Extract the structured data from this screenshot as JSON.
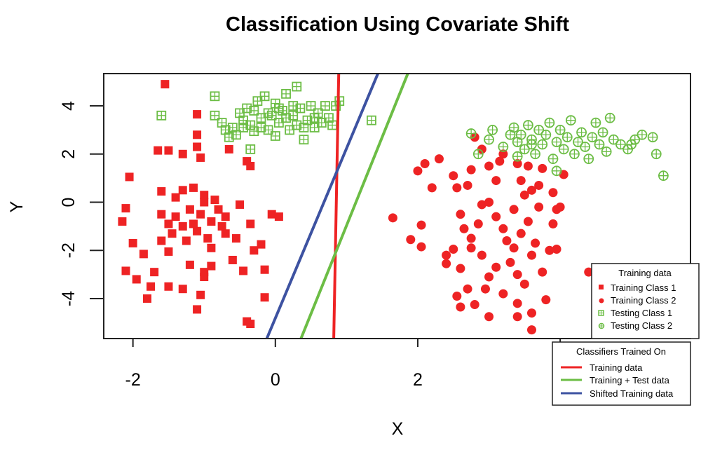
{
  "chart_data": {
    "type": "scatter",
    "title": "Classification Using Covariate Shift",
    "xlabel": "X",
    "ylabel": "Y",
    "xlim": [
      -2.41,
      5.83
    ],
    "ylim": [
      -5.66,
      5.34
    ],
    "xticks": [
      -2,
      0,
      2,
      4
    ],
    "xtick_labels": [
      "-2",
      "0",
      "2",
      "4"
    ],
    "yticks": [
      -4,
      -2,
      0,
      2,
      4
    ],
    "ytick_labels": [
      "-4",
      "-2",
      "0",
      "2",
      "4"
    ],
    "grid": false,
    "colors": {
      "red": "#ee2324",
      "green": "#6cbd45",
      "blue": "#3d52a1"
    },
    "series": [
      {
        "name": "Training Class 1",
        "marker": "square",
        "color": "#ee2324",
        "points": [
          [
            -1.55,
            4.9
          ],
          [
            -2.05,
            1.05
          ],
          [
            -1.65,
            2.15
          ],
          [
            -1.5,
            2.15
          ],
          [
            -1.3,
            2.0
          ],
          [
            -1.1,
            2.3
          ],
          [
            -1.05,
            1.85
          ],
          [
            -1.1,
            2.8
          ],
          [
            -1.1,
            3.65
          ],
          [
            -0.65,
            2.2
          ],
          [
            -0.4,
            1.7
          ],
          [
            -0.35,
            1.5
          ],
          [
            -1.6,
            0.45
          ],
          [
            -2.1,
            -0.25
          ],
          [
            -2.15,
            -0.8
          ],
          [
            -2.0,
            -1.7
          ],
          [
            -1.85,
            -2.15
          ],
          [
            -1.6,
            -1.6
          ],
          [
            -1.5,
            -2.05
          ],
          [
            -1.7,
            -2.9
          ],
          [
            -2.1,
            -2.85
          ],
          [
            -1.95,
            -3.2
          ],
          [
            -1.75,
            -3.5
          ],
          [
            -1.8,
            -4.0
          ],
          [
            -1.5,
            -3.5
          ],
          [
            -1.3,
            -3.6
          ],
          [
            -1.1,
            -4.45
          ],
          [
            -1.05,
            -3.85
          ],
          [
            -1.0,
            -3.1
          ],
          [
            -0.9,
            -2.65
          ],
          [
            -0.6,
            -2.4
          ],
          [
            -0.45,
            -2.85
          ],
          [
            -0.4,
            -4.95
          ],
          [
            -0.35,
            -5.05
          ],
          [
            -0.2,
            -1.75
          ],
          [
            -0.15,
            -2.8
          ],
          [
            -0.05,
            -0.5
          ],
          [
            0.05,
            -0.6
          ],
          [
            -0.15,
            -3.95
          ],
          [
            -0.3,
            -2.0
          ],
          [
            -1.4,
            0.2
          ],
          [
            -1.3,
            0.5
          ],
          [
            -1.15,
            0.6
          ],
          [
            -1.0,
            0.3
          ],
          [
            -0.85,
            0.1
          ],
          [
            -1.2,
            -0.3
          ],
          [
            -1.05,
            -0.5
          ],
          [
            -0.9,
            -0.8
          ],
          [
            -0.75,
            -1.0
          ],
          [
            -1.4,
            -0.6
          ],
          [
            -1.6,
            -0.5
          ],
          [
            -1.3,
            -1.0
          ],
          [
            -1.1,
            -1.2
          ],
          [
            -0.95,
            -1.5
          ],
          [
            -1.25,
            -1.6
          ],
          [
            -1.45,
            -1.3
          ],
          [
            -0.7,
            -1.3
          ],
          [
            -0.5,
            -0.1
          ],
          [
            -0.35,
            -0.9
          ],
          [
            -1.2,
            -2.6
          ],
          [
            -0.55,
            -1.5
          ],
          [
            -1.5,
            -0.9
          ],
          [
            -0.9,
            -1.9
          ],
          [
            -1.0,
            -2.9
          ],
          [
            -0.8,
            -0.3
          ],
          [
            -1.15,
            -0.9
          ],
          [
            -1.0,
            0.0
          ],
          [
            -0.7,
            -0.6
          ]
        ]
      },
      {
        "name": "Training Class 2",
        "marker": "circle",
        "color": "#ee2324",
        "points": [
          [
            1.65,
            -0.65
          ],
          [
            2.0,
            1.3
          ],
          [
            2.1,
            1.6
          ],
          [
            2.2,
            0.6
          ],
          [
            2.3,
            1.8
          ],
          [
            2.5,
            1.1
          ],
          [
            2.55,
            0.6
          ],
          [
            2.7,
            0.7
          ],
          [
            2.75,
            1.35
          ],
          [
            2.8,
            2.7
          ],
          [
            2.9,
            2.2
          ],
          [
            3.0,
            1.5
          ],
          [
            3.1,
            0.9
          ],
          [
            3.15,
            1.7
          ],
          [
            3.2,
            2.0
          ],
          [
            3.4,
            1.6
          ],
          [
            3.45,
            0.9
          ],
          [
            3.5,
            0.3
          ],
          [
            3.6,
            0.5
          ],
          [
            3.55,
            1.5
          ],
          [
            3.7,
            0.7
          ],
          [
            3.75,
            1.4
          ],
          [
            3.9,
            0.4
          ],
          [
            4.05,
            1.15
          ],
          [
            3.95,
            -0.3
          ],
          [
            3.9,
            -0.9
          ],
          [
            3.95,
            -1.95
          ],
          [
            3.85,
            -2.0
          ],
          [
            3.75,
            -2.9
          ],
          [
            4.4,
            -2.9
          ],
          [
            3.8,
            -4.05
          ],
          [
            3.6,
            -4.6
          ],
          [
            3.6,
            -5.3
          ],
          [
            3.4,
            -4.75
          ],
          [
            3.4,
            -4.2
          ],
          [
            3.2,
            -3.8
          ],
          [
            3.0,
            -4.75
          ],
          [
            2.8,
            -4.25
          ],
          [
            2.6,
            -4.35
          ],
          [
            2.55,
            -3.9
          ],
          [
            2.7,
            -3.6
          ],
          [
            2.6,
            -2.75
          ],
          [
            2.4,
            -2.2
          ],
          [
            2.4,
            -2.55
          ],
          [
            2.5,
            -1.95
          ],
          [
            1.9,
            -1.55
          ],
          [
            2.05,
            -1.85
          ],
          [
            2.05,
            -0.95
          ],
          [
            2.65,
            -1.1
          ],
          [
            2.75,
            -1.5
          ],
          [
            2.85,
            -0.9
          ],
          [
            2.9,
            -0.1
          ],
          [
            3.0,
            0.0
          ],
          [
            3.1,
            -0.6
          ],
          [
            3.2,
            -1.1
          ],
          [
            3.25,
            -1.6
          ],
          [
            3.35,
            -1.9
          ],
          [
            3.45,
            -1.3
          ],
          [
            3.55,
            -0.8
          ],
          [
            3.65,
            -1.7
          ],
          [
            3.6,
            -2.2
          ],
          [
            3.3,
            -2.5
          ],
          [
            3.1,
            -2.7
          ],
          [
            3.0,
            -3.1
          ],
          [
            2.9,
            -2.2
          ],
          [
            2.75,
            -1.9
          ],
          [
            3.4,
            -3.0
          ],
          [
            3.5,
            -3.4
          ],
          [
            2.95,
            -3.6
          ],
          [
            3.7,
            -0.2
          ],
          [
            4.0,
            -0.2
          ],
          [
            2.6,
            -0.5
          ],
          [
            3.35,
            -0.3
          ]
        ]
      },
      {
        "name": "Testing Class 1",
        "marker": "square-plus",
        "color": "#6cbd45",
        "points": [
          [
            -1.6,
            3.6
          ],
          [
            -0.85,
            4.4
          ],
          [
            -0.35,
            2.2
          ],
          [
            0.9,
            4.2
          ],
          [
            1.35,
            3.4
          ],
          [
            -0.85,
            3.6
          ],
          [
            -0.75,
            3.3
          ],
          [
            -0.7,
            3.0
          ],
          [
            -0.6,
            3.1
          ],
          [
            -0.5,
            3.7
          ],
          [
            -0.45,
            3.4
          ],
          [
            -0.4,
            3.9
          ],
          [
            -0.35,
            3.2
          ],
          [
            -0.3,
            3.8
          ],
          [
            -0.25,
            4.2
          ],
          [
            -0.2,
            3.5
          ],
          [
            -0.15,
            4.4
          ],
          [
            -0.1,
            3.0
          ],
          [
            -0.05,
            3.6
          ],
          [
            0.0,
            4.1
          ],
          [
            0.05,
            3.3
          ],
          [
            0.1,
            3.8
          ],
          [
            0.15,
            4.5
          ],
          [
            0.2,
            3.0
          ],
          [
            0.25,
            3.6
          ],
          [
            0.3,
            3.2
          ],
          [
            0.35,
            3.9
          ],
          [
            0.4,
            2.6
          ],
          [
            0.45,
            3.4
          ],
          [
            0.5,
            4.0
          ],
          [
            0.55,
            3.1
          ],
          [
            0.6,
            3.7
          ],
          [
            0.65,
            3.3
          ],
          [
            0.7,
            4.0
          ],
          [
            0.75,
            3.5
          ],
          [
            0.8,
            3.2
          ],
          [
            0.85,
            4.0
          ],
          [
            0.3,
            4.8
          ],
          [
            -0.55,
            2.8
          ],
          [
            -0.65,
            2.7
          ],
          [
            -0.2,
            3.1
          ],
          [
            0.0,
            2.75
          ],
          [
            0.05,
            3.9
          ],
          [
            -0.1,
            3.7
          ],
          [
            0.15,
            3.5
          ],
          [
            0.25,
            4.0
          ],
          [
            -0.3,
            2.95
          ],
          [
            -0.45,
            3.1
          ],
          [
            0.4,
            3.1
          ],
          [
            0.55,
            3.5
          ]
        ]
      },
      {
        "name": "Testing Class 2",
        "marker": "circle-plus",
        "color": "#6cbd45",
        "points": [
          [
            2.75,
            2.85
          ],
          [
            2.85,
            2.0
          ],
          [
            3.0,
            2.6
          ],
          [
            3.05,
            3.0
          ],
          [
            3.2,
            2.3
          ],
          [
            3.35,
            3.1
          ],
          [
            3.4,
            2.5
          ],
          [
            3.45,
            2.8
          ],
          [
            3.5,
            2.2
          ],
          [
            3.55,
            3.2
          ],
          [
            3.6,
            2.6
          ],
          [
            3.65,
            2.0
          ],
          [
            3.7,
            3.0
          ],
          [
            3.75,
            2.4
          ],
          [
            3.8,
            2.8
          ],
          [
            3.85,
            3.3
          ],
          [
            3.9,
            1.8
          ],
          [
            3.95,
            1.3
          ],
          [
            3.95,
            2.5
          ],
          [
            4.0,
            3.0
          ],
          [
            4.05,
            2.2
          ],
          [
            4.1,
            2.7
          ],
          [
            4.15,
            3.4
          ],
          [
            4.2,
            2.0
          ],
          [
            4.25,
            2.5
          ],
          [
            4.3,
            2.9
          ],
          [
            4.35,
            2.3
          ],
          [
            4.4,
            1.8
          ],
          [
            4.45,
            2.7
          ],
          [
            4.5,
            3.3
          ],
          [
            4.55,
            2.4
          ],
          [
            4.6,
            2.9
          ],
          [
            4.65,
            2.1
          ],
          [
            4.7,
            3.5
          ],
          [
            4.75,
            2.6
          ],
          [
            4.85,
            2.4
          ],
          [
            4.95,
            2.2
          ],
          [
            5.05,
            2.6
          ],
          [
            5.15,
            2.8
          ],
          [
            5.3,
            2.7
          ],
          [
            5.35,
            2.0
          ],
          [
            5.45,
            1.1
          ],
          [
            5.0,
            2.4
          ],
          [
            3.3,
            2.8
          ],
          [
            3.6,
            2.4
          ],
          [
            3.4,
            1.9
          ]
        ]
      }
    ],
    "lines": [
      {
        "name": "Training data",
        "color": "#ee2324",
        "from": [
          0.89,
          5.34
        ],
        "to": [
          0.82,
          -5.66
        ]
      },
      {
        "name": "Training + Test data",
        "color": "#6cbd45",
        "from": [
          1.86,
          5.34
        ],
        "to": [
          0.36,
          -5.66
        ]
      },
      {
        "name": "Shifted Training data",
        "color": "#3d52a1",
        "from": [
          1.44,
          5.34
        ],
        "to": [
          -0.12,
          -5.66
        ]
      }
    ],
    "legends": [
      {
        "title": "Training data",
        "placement": "bottom-right",
        "entries": [
          "Training Class 1",
          "Training Class 2",
          "Testing Class 1",
          "Testing Class 2"
        ]
      },
      {
        "title": "Classifiers Trained On",
        "placement": "below-bottom-right",
        "entries": [
          "Training data",
          "Training + Test data",
          "Shifted Training data"
        ]
      }
    ]
  }
}
